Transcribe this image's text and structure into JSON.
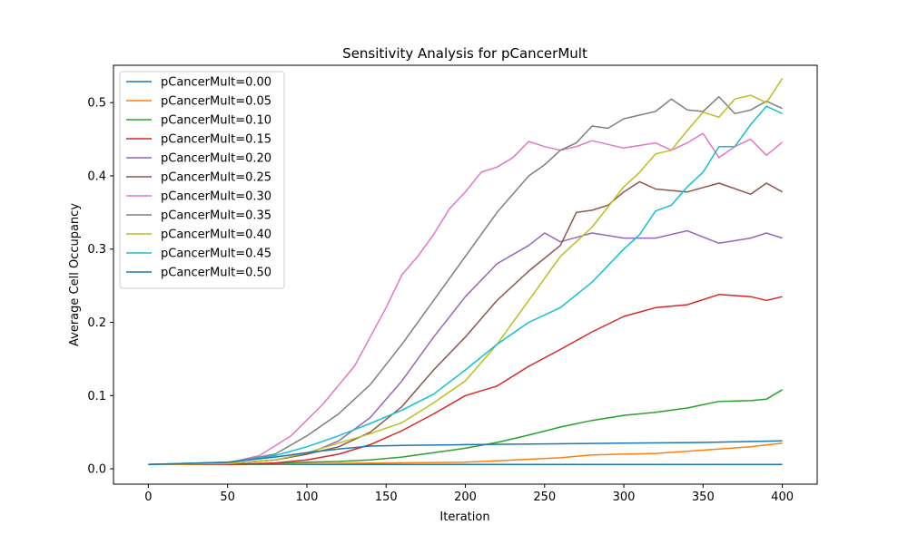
{
  "chart_data": {
    "type": "line",
    "title": "Sensitivity Analysis for pCancerMult",
    "xlabel": "Iteration",
    "ylabel": "Average Cell Occupancy",
    "xlim": [
      -22,
      422
    ],
    "ylim": [
      -0.021,
      0.551
    ],
    "xticks": [
      0,
      50,
      100,
      150,
      200,
      250,
      300,
      350,
      400
    ],
    "yticks": [
      0.0,
      0.1,
      0.2,
      0.3,
      0.4,
      0.5
    ],
    "ytick_labels": [
      "0.0",
      "0.1",
      "0.2",
      "0.3",
      "0.4",
      "0.5"
    ],
    "grid": false,
    "legend_position": "upper-left",
    "series": [
      {
        "name": "pCancerMult=0.00",
        "color": "#1f77b4",
        "x": [
          0,
          50,
          100,
          150,
          200,
          250,
          300,
          350,
          400
        ],
        "y": [
          0.006,
          0.006,
          0.006,
          0.006,
          0.006,
          0.006,
          0.006,
          0.006,
          0.006
        ]
      },
      {
        "name": "pCancerMult=0.05",
        "color": "#ff7f0e",
        "x": [
          0,
          50,
          100,
          150,
          200,
          220,
          240,
          260,
          280,
          300,
          320,
          340,
          360,
          380,
          400
        ],
        "y": [
          0.006,
          0.006,
          0.007,
          0.008,
          0.009,
          0.011,
          0.013,
          0.015,
          0.019,
          0.02,
          0.021,
          0.024,
          0.027,
          0.03,
          0.035
        ]
      },
      {
        "name": "pCancerMult=0.10",
        "color": "#2ca02c",
        "x": [
          0,
          50,
          80,
          100,
          120,
          140,
          160,
          180,
          200,
          220,
          240,
          260,
          280,
          300,
          320,
          340,
          360,
          380,
          390,
          400
        ],
        "y": [
          0.006,
          0.006,
          0.007,
          0.009,
          0.01,
          0.012,
          0.016,
          0.022,
          0.028,
          0.036,
          0.046,
          0.057,
          0.066,
          0.073,
          0.077,
          0.083,
          0.092,
          0.093,
          0.095,
          0.108
        ]
      },
      {
        "name": "pCancerMult=0.15",
        "color": "#d62728",
        "x": [
          0,
          50,
          80,
          100,
          120,
          140,
          160,
          180,
          200,
          220,
          240,
          260,
          280,
          300,
          320,
          340,
          360,
          380,
          390,
          400
        ],
        "y": [
          0.006,
          0.006,
          0.008,
          0.012,
          0.02,
          0.033,
          0.052,
          0.075,
          0.1,
          0.113,
          0.14,
          0.163,
          0.187,
          0.208,
          0.22,
          0.224,
          0.238,
          0.235,
          0.23,
          0.235
        ]
      },
      {
        "name": "pCancerMult=0.20",
        "color": "#9467bd",
        "x": [
          0,
          50,
          80,
          100,
          120,
          140,
          160,
          180,
          200,
          220,
          240,
          250,
          260,
          280,
          300,
          320,
          340,
          360,
          380,
          390,
          400
        ],
        "y": [
          0.006,
          0.007,
          0.012,
          0.02,
          0.038,
          0.07,
          0.12,
          0.18,
          0.235,
          0.28,
          0.305,
          0.322,
          0.31,
          0.322,
          0.315,
          0.315,
          0.325,
          0.308,
          0.315,
          0.322,
          0.315
        ]
      },
      {
        "name": "pCancerMult=0.25",
        "color": "#8c564b",
        "x": [
          0,
          50,
          80,
          100,
          120,
          140,
          160,
          180,
          200,
          220,
          240,
          260,
          270,
          280,
          290,
          300,
          310,
          320,
          340,
          360,
          380,
          390,
          400
        ],
        "y": [
          0.006,
          0.007,
          0.012,
          0.02,
          0.03,
          0.05,
          0.085,
          0.135,
          0.18,
          0.23,
          0.27,
          0.305,
          0.35,
          0.353,
          0.36,
          0.378,
          0.392,
          0.382,
          0.378,
          0.39,
          0.375,
          0.39,
          0.378
        ]
      },
      {
        "name": "pCancerMult=0.30",
        "color": "#e377c2",
        "x": [
          0,
          50,
          70,
          90,
          110,
          130,
          150,
          160,
          170,
          180,
          190,
          200,
          210,
          220,
          230,
          240,
          250,
          260,
          270,
          280,
          300,
          320,
          330,
          340,
          350,
          360,
          370,
          380,
          390,
          400
        ],
        "y": [
          0.006,
          0.008,
          0.018,
          0.045,
          0.088,
          0.14,
          0.22,
          0.265,
          0.29,
          0.32,
          0.355,
          0.378,
          0.405,
          0.412,
          0.425,
          0.447,
          0.44,
          0.435,
          0.44,
          0.448,
          0.438,
          0.445,
          0.435,
          0.445,
          0.458,
          0.425,
          0.44,
          0.45,
          0.428,
          0.446
        ]
      },
      {
        "name": "pCancerMult=0.35",
        "color": "#7f7f7f",
        "x": [
          0,
          50,
          80,
          100,
          120,
          140,
          160,
          180,
          200,
          220,
          240,
          250,
          260,
          270,
          280,
          290,
          300,
          320,
          330,
          340,
          350,
          360,
          370,
          380,
          390,
          400
        ],
        "y": [
          0.006,
          0.008,
          0.02,
          0.045,
          0.075,
          0.115,
          0.17,
          0.23,
          0.29,
          0.35,
          0.4,
          0.415,
          0.435,
          0.445,
          0.468,
          0.465,
          0.478,
          0.488,
          0.505,
          0.49,
          0.488,
          0.508,
          0.485,
          0.49,
          0.502,
          0.492
        ]
      },
      {
        "name": "pCancerMult=0.40",
        "color": "#bcbd22",
        "x": [
          0,
          50,
          80,
          100,
          120,
          140,
          160,
          180,
          200,
          220,
          240,
          260,
          280,
          300,
          310,
          320,
          330,
          340,
          350,
          360,
          370,
          380,
          390,
          400
        ],
        "y": [
          0.006,
          0.007,
          0.012,
          0.022,
          0.035,
          0.048,
          0.063,
          0.09,
          0.12,
          0.17,
          0.23,
          0.29,
          0.33,
          0.385,
          0.405,
          0.43,
          0.435,
          0.462,
          0.487,
          0.48,
          0.505,
          0.51,
          0.5,
          0.533
        ]
      },
      {
        "name": "pCancerMult=0.45",
        "color": "#17becf",
        "x": [
          0,
          50,
          80,
          100,
          120,
          140,
          160,
          180,
          200,
          220,
          240,
          260,
          280,
          300,
          310,
          320,
          330,
          340,
          350,
          360,
          370,
          380,
          390,
          400
        ],
        "y": [
          0.006,
          0.009,
          0.018,
          0.03,
          0.045,
          0.062,
          0.08,
          0.102,
          0.135,
          0.17,
          0.2,
          0.22,
          0.255,
          0.3,
          0.32,
          0.352,
          0.36,
          0.385,
          0.405,
          0.44,
          0.44,
          0.47,
          0.495,
          0.485
        ]
      },
      {
        "name": "pCancerMult=0.50",
        "color": "#1f77b4",
        "x": [
          0,
          50,
          80,
          100,
          120,
          140,
          160,
          200,
          250,
          300,
          350,
          400
        ],
        "y": [
          0.006,
          0.009,
          0.016,
          0.022,
          0.027,
          0.031,
          0.032,
          0.033,
          0.034,
          0.035,
          0.036,
          0.038
        ]
      }
    ]
  }
}
